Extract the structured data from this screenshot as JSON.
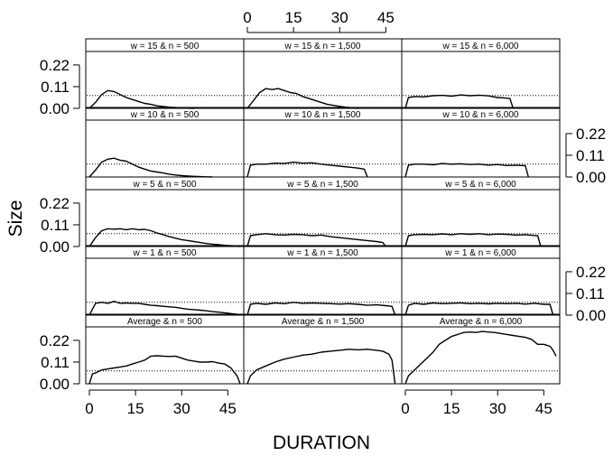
{
  "chart_data": {
    "type": "line",
    "xlabel": "DURATION",
    "ylabel": "Size",
    "x_ticks": [
      0,
      15,
      30,
      45
    ],
    "y_ticks": [
      "0.22",
      "0.11",
      "0.00"
    ],
    "x_tick_labels": [
      "0",
      "15",
      "30",
      "45"
    ],
    "y_tick_labels": [
      "0.22",
      "0.11",
      "0.00"
    ],
    "xlim": [
      0,
      49
    ],
    "ylim": [
      0,
      0.27
    ],
    "reference_line": {
      "y": 0.065,
      "style": "dotted"
    },
    "panels": [
      {
        "label": "w = 15 & n = 500",
        "x": [
          0,
          2,
          4,
          6,
          8,
          10,
          12,
          14,
          16,
          18,
          20,
          22,
          24,
          26,
          28,
          30,
          32,
          34
        ],
        "y": [
          0,
          0.03,
          0.07,
          0.09,
          0.085,
          0.07,
          0.055,
          0.045,
          0.035,
          0.025,
          0.02,
          0.013,
          0.009,
          0.006,
          0.004,
          0.002,
          0.001,
          0
        ]
      },
      {
        "label": "w = 15 & n = 1,500",
        "x": [
          0,
          2,
          4,
          6,
          8,
          10,
          12,
          14,
          16,
          18,
          20,
          22,
          24,
          26,
          28,
          30,
          32,
          34,
          36
        ],
        "y": [
          0,
          0.04,
          0.08,
          0.1,
          0.095,
          0.1,
          0.09,
          0.08,
          0.075,
          0.06,
          0.05,
          0.04,
          0.03,
          0.02,
          0.015,
          0.01,
          0.006,
          0.003,
          0
        ]
      },
      {
        "label": "w = 15 & n = 6,000",
        "x": [
          0,
          1,
          3,
          6,
          9,
          12,
          15,
          18,
          21,
          24,
          27,
          30,
          32,
          34,
          35
        ],
        "y": [
          0,
          0.055,
          0.06,
          0.058,
          0.064,
          0.066,
          0.062,
          0.068,
          0.064,
          0.067,
          0.063,
          0.055,
          0.053,
          0.05,
          0
        ]
      },
      {
        "label": "w = 10 & n = 500",
        "x": [
          0,
          2,
          4,
          6,
          8,
          10,
          12,
          14,
          16,
          18,
          20,
          22,
          24,
          26,
          28,
          30,
          32,
          34,
          36,
          38,
          40
        ],
        "y": [
          0,
          0.035,
          0.075,
          0.09,
          0.095,
          0.085,
          0.08,
          0.065,
          0.05,
          0.04,
          0.03,
          0.025,
          0.02,
          0.014,
          0.01,
          0.007,
          0.005,
          0.003,
          0.002,
          0.001,
          0
        ]
      },
      {
        "label": "w = 10 & n = 1,500",
        "x": [
          0,
          1,
          3,
          6,
          9,
          12,
          15,
          18,
          21,
          24,
          27,
          30,
          33,
          36,
          38,
          39
        ],
        "y": [
          0,
          0.06,
          0.065,
          0.065,
          0.07,
          0.068,
          0.075,
          0.07,
          0.072,
          0.065,
          0.06,
          0.055,
          0.05,
          0.045,
          0.04,
          0
        ]
      },
      {
        "label": "w = 10 & n = 6,000",
        "x": [
          0,
          1,
          3,
          6,
          9,
          12,
          15,
          18,
          21,
          24,
          27,
          30,
          33,
          36,
          39,
          40
        ],
        "y": [
          0,
          0.06,
          0.065,
          0.065,
          0.062,
          0.068,
          0.065,
          0.067,
          0.063,
          0.065,
          0.06,
          0.063,
          0.058,
          0.06,
          0.057,
          0
        ]
      },
      {
        "label": "w = 5 & n = 500",
        "x": [
          0,
          2,
          4,
          6,
          8,
          10,
          12,
          14,
          16,
          18,
          20,
          22,
          24,
          26,
          28,
          30,
          32,
          34,
          36,
          38,
          40,
          42,
          44,
          46,
          48,
          49
        ],
        "y": [
          0,
          0.045,
          0.08,
          0.09,
          0.088,
          0.09,
          0.085,
          0.09,
          0.085,
          0.087,
          0.08,
          0.068,
          0.06,
          0.05,
          0.042,
          0.035,
          0.03,
          0.025,
          0.02,
          0.015,
          0.012,
          0.009,
          0.006,
          0.004,
          0.002,
          0
        ]
      },
      {
        "label": "w = 5 & n = 1,500",
        "x": [
          0,
          1,
          3,
          6,
          9,
          12,
          15,
          18,
          21,
          24,
          27,
          30,
          33,
          36,
          39,
          42,
          44,
          45
        ],
        "y": [
          0,
          0.055,
          0.06,
          0.065,
          0.06,
          0.058,
          0.062,
          0.06,
          0.055,
          0.058,
          0.05,
          0.045,
          0.04,
          0.035,
          0.03,
          0.025,
          0.02,
          0
        ]
      },
      {
        "label": "w = 5 & n = 6,000",
        "x": [
          0,
          1,
          3,
          6,
          9,
          12,
          15,
          18,
          21,
          24,
          27,
          30,
          33,
          36,
          39,
          42,
          43,
          44
        ],
        "y": [
          0,
          0.055,
          0.06,
          0.062,
          0.06,
          0.064,
          0.06,
          0.065,
          0.062,
          0.065,
          0.06,
          0.063,
          0.062,
          0.058,
          0.06,
          0.056,
          0.055,
          0
        ]
      },
      {
        "label": "w = 1 & n = 500",
        "x": [
          0,
          2,
          4,
          6,
          8,
          10,
          12,
          14,
          16,
          18,
          20,
          22,
          24,
          26,
          28,
          30,
          32,
          34,
          36,
          38,
          40,
          42,
          44,
          46,
          48,
          49
        ],
        "y": [
          0,
          0.06,
          0.065,
          0.06,
          0.07,
          0.06,
          0.062,
          0.06,
          0.06,
          0.055,
          0.05,
          0.048,
          0.045,
          0.042,
          0.04,
          0.035,
          0.03,
          0.028,
          0.025,
          0.022,
          0.018,
          0.015,
          0.012,
          0.008,
          0.004,
          0
        ]
      },
      {
        "label": "w = 1 & n = 1,500",
        "x": [
          0,
          1,
          3,
          6,
          9,
          12,
          15,
          18,
          21,
          24,
          27,
          30,
          33,
          36,
          39,
          42,
          45,
          47,
          48
        ],
        "y": [
          0,
          0.055,
          0.06,
          0.055,
          0.062,
          0.058,
          0.065,
          0.06,
          0.062,
          0.06,
          0.058,
          0.056,
          0.058,
          0.055,
          0.05,
          0.052,
          0.048,
          0.045,
          0
        ]
      },
      {
        "label": "w = 1 & n = 6,000",
        "x": [
          0,
          1,
          3,
          6,
          9,
          12,
          15,
          18,
          21,
          24,
          27,
          30,
          33,
          36,
          39,
          42,
          45,
          47,
          48
        ],
        "y": [
          0,
          0.05,
          0.06,
          0.055,
          0.062,
          0.058,
          0.06,
          0.062,
          0.058,
          0.06,
          0.057,
          0.06,
          0.058,
          0.06,
          0.056,
          0.06,
          0.055,
          0.055,
          0
        ]
      },
      {
        "label": "Average & n = 500",
        "x": [
          0,
          1,
          2,
          4,
          6,
          8,
          10,
          12,
          14,
          16,
          18,
          20,
          22,
          24,
          26,
          28,
          30,
          32,
          34,
          36,
          38,
          40,
          42,
          44,
          46,
          48,
          49
        ],
        "y": [
          0,
          0.05,
          0.055,
          0.07,
          0.075,
          0.08,
          0.085,
          0.09,
          0.1,
          0.11,
          0.12,
          0.14,
          0.142,
          0.14,
          0.138,
          0.14,
          0.13,
          0.12,
          0.115,
          0.11,
          0.11,
          0.112,
          0.105,
          0.1,
          0.08,
          0.04,
          0
        ]
      },
      {
        "label": "Average & n = 1,500",
        "x": [
          0,
          1,
          3,
          6,
          9,
          12,
          15,
          18,
          21,
          24,
          27,
          30,
          33,
          36,
          39,
          42,
          44,
          46,
          47,
          48
        ],
        "y": [
          0,
          0.04,
          0.07,
          0.09,
          0.11,
          0.125,
          0.135,
          0.145,
          0.15,
          0.16,
          0.165,
          0.17,
          0.175,
          0.172,
          0.175,
          0.17,
          0.165,
          0.15,
          0.12,
          0
        ]
      },
      {
        "label": "Average & n = 6,000",
        "x": [
          0,
          1,
          3,
          5,
          7,
          9,
          11,
          13,
          15,
          17,
          19,
          21,
          23,
          25,
          27,
          29,
          31,
          33,
          35,
          37,
          39,
          41,
          43,
          45,
          47,
          48,
          49
        ],
        "y": [
          0,
          0.04,
          0.07,
          0.1,
          0.13,
          0.16,
          0.2,
          0.22,
          0.24,
          0.25,
          0.26,
          0.262,
          0.26,
          0.265,
          0.262,
          0.26,
          0.255,
          0.25,
          0.245,
          0.24,
          0.235,
          0.225,
          0.2,
          0.2,
          0.19,
          0.17,
          0.14
        ]
      }
    ]
  }
}
